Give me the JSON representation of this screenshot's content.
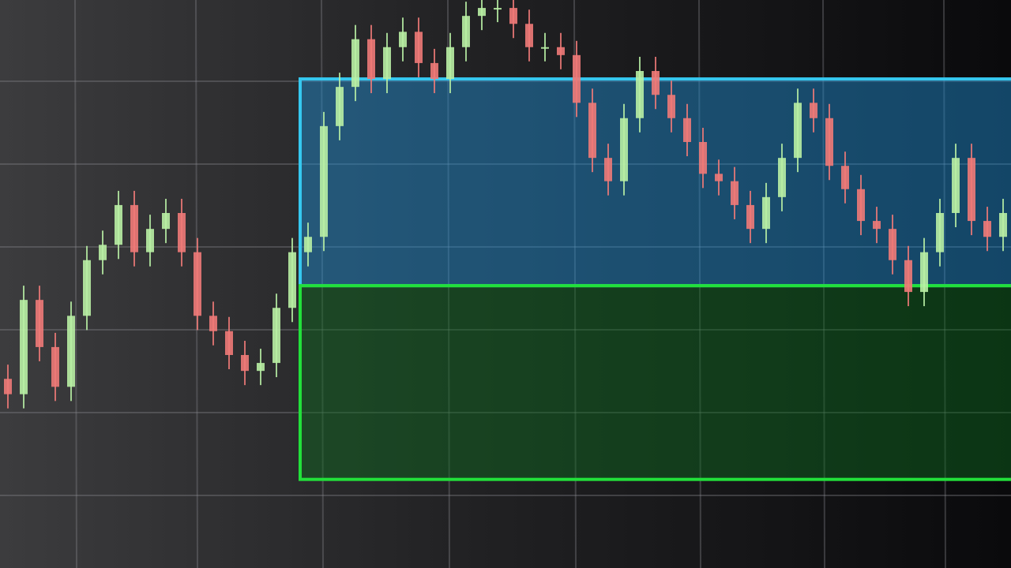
{
  "chart_data": {
    "type": "candlestick",
    "ylim": [
      0,
      100
    ],
    "up_color": "#b9f0a4",
    "down_color": "#f07a78",
    "open": [
      33.3,
      30.6,
      47.2,
      38.9,
      31.9,
      44.4,
      54.2,
      56.9,
      63.9,
      55.6,
      59.7,
      62.5,
      55.6,
      44.4,
      41.7,
      37.5,
      34.7,
      36.1,
      45.8,
      55.6,
      58.3,
      77.8,
      84.7,
      93.1,
      86.1,
      91.7,
      94.4,
      88.9,
      86.1,
      91.7,
      97.2,
      98.6,
      98.6,
      95.8,
      91.7,
      91.7,
      90.3,
      81.9,
      72.2,
      68.1,
      79.2,
      87.5,
      83.3,
      79.2,
      75.0,
      69.4,
      68.1,
      63.9,
      59.7,
      65.3,
      72.2,
      81.9,
      79.2,
      70.8,
      66.7,
      61.1,
      59.7,
      54.2,
      48.6,
      55.6,
      62.5,
      72.2,
      61.1,
      58.3
    ],
    "high": [
      35.8,
      49.7,
      49.7,
      41.4,
      46.9,
      56.7,
      59.4,
      66.4,
      66.4,
      62.2,
      65.0,
      65.0,
      58.1,
      46.9,
      44.2,
      40.0,
      38.6,
      48.3,
      58.1,
      60.8,
      80.3,
      87.2,
      95.6,
      95.6,
      94.2,
      96.9,
      96.9,
      91.4,
      94.2,
      99.7,
      101.1,
      101.1,
      101.1,
      98.3,
      94.2,
      94.2,
      92.8,
      84.4,
      74.7,
      81.7,
      90.0,
      90.0,
      85.8,
      81.7,
      77.5,
      71.9,
      70.6,
      66.4,
      67.8,
      74.7,
      84.4,
      84.4,
      81.7,
      73.3,
      69.2,
      63.6,
      62.2,
      56.7,
      58.1,
      65.0,
      74.7,
      74.7,
      63.6,
      65.0
    ],
    "low": [
      28.1,
      28.1,
      36.4,
      29.4,
      29.4,
      41.9,
      51.7,
      54.4,
      53.1,
      53.1,
      57.2,
      53.1,
      41.9,
      39.2,
      35.0,
      32.2,
      32.2,
      33.6,
      43.3,
      53.1,
      55.8,
      75.3,
      82.2,
      83.6,
      83.6,
      89.2,
      86.4,
      83.6,
      83.6,
      89.2,
      94.7,
      96.1,
      93.3,
      89.2,
      89.2,
      87.8,
      79.4,
      69.7,
      65.6,
      65.6,
      76.7,
      80.8,
      76.7,
      72.5,
      66.9,
      65.6,
      61.4,
      57.2,
      57.2,
      62.8,
      69.7,
      76.7,
      68.3,
      64.2,
      58.6,
      57.2,
      51.7,
      46.1,
      46.1,
      53.1,
      60.0,
      58.6,
      55.8,
      55.8
    ],
    "close": [
      30.6,
      47.2,
      38.9,
      31.9,
      44.4,
      54.2,
      56.9,
      63.9,
      55.6,
      59.7,
      62.5,
      55.6,
      44.4,
      41.7,
      37.5,
      34.7,
      36.1,
      45.8,
      55.6,
      58.3,
      77.8,
      84.7,
      93.1,
      86.1,
      91.7,
      94.4,
      88.9,
      86.1,
      91.7,
      97.2,
      98.6,
      98.6,
      95.8,
      91.7,
      91.7,
      90.3,
      81.9,
      72.2,
      68.1,
      79.2,
      87.5,
      83.3,
      79.2,
      75.0,
      69.4,
      68.1,
      63.9,
      59.7,
      65.3,
      72.2,
      81.9,
      79.2,
      70.8,
      66.7,
      61.1,
      59.7,
      54.2,
      48.6,
      55.6,
      62.5,
      72.2,
      61.1,
      58.3,
      62.5
    ],
    "zones": [
      {
        "low": 49.7,
        "high": 86.1,
        "start": 19,
        "color": "#1e90d8",
        "border": "#35c8f0"
      },
      {
        "low": 15.6,
        "high": 49.7,
        "start": 19,
        "color": "#0e6a1e",
        "border": "#22e03a"
      }
    ]
  }
}
